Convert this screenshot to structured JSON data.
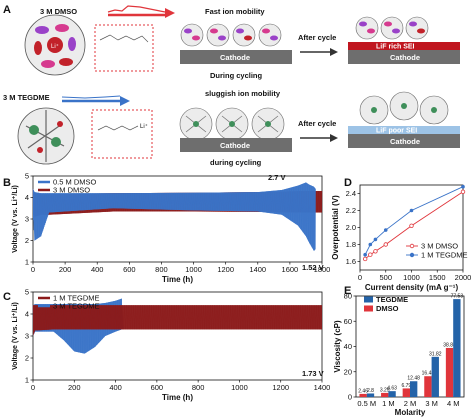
{
  "panel_letters": [
    "A",
    "B",
    "C",
    "D",
    "E"
  ],
  "schematic": {
    "top_label": "3 M DMSO",
    "top_desc": "Fast ion mobility",
    "top_cycle": "During cycling",
    "after_cycle": "After cycle",
    "cathode_label": "Cathode",
    "top_sei": "LiF rich SEI",
    "bottom_label": "3 M TEGDME",
    "bottom_desc": "sluggish ion mobility",
    "bottom_cycle": "during cycling",
    "bottom_sei": "LiF poor SEI",
    "li_label": "Li⁺",
    "colors": {
      "dmso_arrow": "#e0353b",
      "tegdme_arrow": "#3a73c8",
      "cathode": "#6e6e6e",
      "sei_rich": "#c0161f",
      "sei_poor": "#9dc3e6"
    }
  },
  "chart_data": [
    {
      "id": "B",
      "type": "line",
      "xlabel": "Time (h)",
      "ylabel": "Voltage (V vs. Li⁺/Li)",
      "xlim": [
        0,
        1800
      ],
      "ylim": [
        1,
        5
      ],
      "xticks": [
        0,
        200,
        400,
        600,
        800,
        1000,
        1200,
        1400,
        1600,
        1800
      ],
      "yticks": [
        1,
        2,
        3,
        4,
        5
      ],
      "series": [
        {
          "name": "0.5 M DMSO",
          "color": "#3a73c8",
          "x": [
            0,
            10,
            50,
            100,
            500,
            1000,
            1400,
            1550,
            1650,
            1700,
            1720,
            1750,
            1760
          ],
          "upper": [
            4.4,
            4.25,
            4.2,
            4.2,
            4.2,
            4.22,
            4.25,
            4.35,
            4.55,
            4.7,
            4.6,
            4.5,
            4.4
          ],
          "lower": [
            3.2,
            2.0,
            2.2,
            3.3,
            3.5,
            3.4,
            3.35,
            3.2,
            2.7,
            2.2,
            1.9,
            1.52,
            1.6
          ]
        },
        {
          "name": "3 M DMSO",
          "color": "#8b1a1a",
          "x": [
            0,
            10,
            50,
            100,
            500,
            1000,
            1400,
            1700,
            1750,
            1800
          ],
          "upper": [
            4.4,
            4.2,
            4.15,
            4.15,
            4.2,
            4.22,
            4.25,
            4.3,
            4.3,
            4.3
          ],
          "lower": [
            3.3,
            3.1,
            3.2,
            3.2,
            3.35,
            3.35,
            3.33,
            3.3,
            3.3,
            3.3
          ]
        }
      ],
      "annotations": [
        "2.7 V",
        "1.52 V"
      ]
    },
    {
      "id": "C",
      "type": "line",
      "xlabel": "Time (h)",
      "ylabel": "Voltage (V vs. Li⁺/Li)",
      "xlim": [
        0,
        1400
      ],
      "ylim": [
        1,
        5
      ],
      "xticks": [
        0,
        200,
        400,
        600,
        800,
        1000,
        1200,
        1400
      ],
      "yticks": [
        1,
        2,
        3,
        4,
        5
      ],
      "series": [
        {
          "name": "1 M TEGDME",
          "color": "#8b1a1a",
          "x": [
            0,
            10,
            100,
            500,
            1000,
            1400
          ],
          "upper": [
            4.4,
            4.4,
            4.4,
            4.4,
            4.4,
            4.4
          ],
          "lower": [
            3.0,
            3.25,
            3.3,
            3.3,
            3.3,
            3.3
          ]
        },
        {
          "name": "3 M TEGDME",
          "color": "#3a73c8",
          "x": [
            0,
            10,
            100,
            150,
            200,
            250,
            300,
            350,
            400,
            430,
            435,
            440
          ],
          "upper": [
            4.4,
            4.45,
            4.45,
            4.45,
            4.45,
            4.45,
            4.45,
            4.5,
            4.6,
            4.7,
            3.5,
            3.3
          ],
          "lower": [
            3.0,
            3.2,
            3.2,
            2.8,
            2.3,
            2.2,
            2.5,
            3.0,
            3.2,
            3.3,
            3.3,
            3.3
          ]
        }
      ],
      "annotations": [
        "1.73 V"
      ]
    },
    {
      "id": "D",
      "type": "line",
      "xlabel": "Current density (mA g⁻¹)",
      "ylabel": "Overpotential (V)",
      "xlim": [
        0,
        2000
      ],
      "ylim": [
        1.5,
        2.5
      ],
      "xticks": [
        0,
        500,
        1000,
        1500,
        2000
      ],
      "yticks": [
        1.6,
        1.8,
        2.0,
        2.2,
        2.4
      ],
      "series": [
        {
          "name": "3 M DMSO",
          "color": "#e0353b",
          "x": [
            100,
            200,
            300,
            500,
            1000,
            2000
          ],
          "values": [
            1.63,
            1.68,
            1.72,
            1.8,
            2.02,
            2.42
          ]
        },
        {
          "name": "1 M TEGDME",
          "color": "#3a73c8",
          "x": [
            100,
            200,
            300,
            500,
            1000,
            2000
          ],
          "values": [
            1.68,
            1.8,
            1.86,
            1.97,
            2.2,
            2.48
          ]
        }
      ],
      "legend": "bottom-right"
    },
    {
      "id": "E",
      "type": "bar",
      "xlabel": "Molarity",
      "ylabel": "Viscosity (cP)",
      "ylim": [
        0,
        80
      ],
      "yticks": [
        0,
        20,
        40,
        60,
        80
      ],
      "categories": [
        "0.5 M",
        "1 M",
        "2 M",
        "3 M",
        "4 M"
      ],
      "series": [
        {
          "name": "TEGDME",
          "color": "#2463a8",
          "values": [
            2.8,
            4.63,
            12.48,
            31.82,
            77.53
          ]
        },
        {
          "name": "DMSO",
          "color": "#e0353b",
          "values": [
            2.46,
            3.25,
            6.79,
            16.46,
            38.84
          ]
        }
      ],
      "data_labels": [
        "2.46",
        "2.8",
        "3.25",
        "4.63",
        "6.79",
        "12.48",
        "16.46",
        "31.82",
        "38.84",
        "77.53"
      ],
      "legend": "top-left"
    }
  ]
}
